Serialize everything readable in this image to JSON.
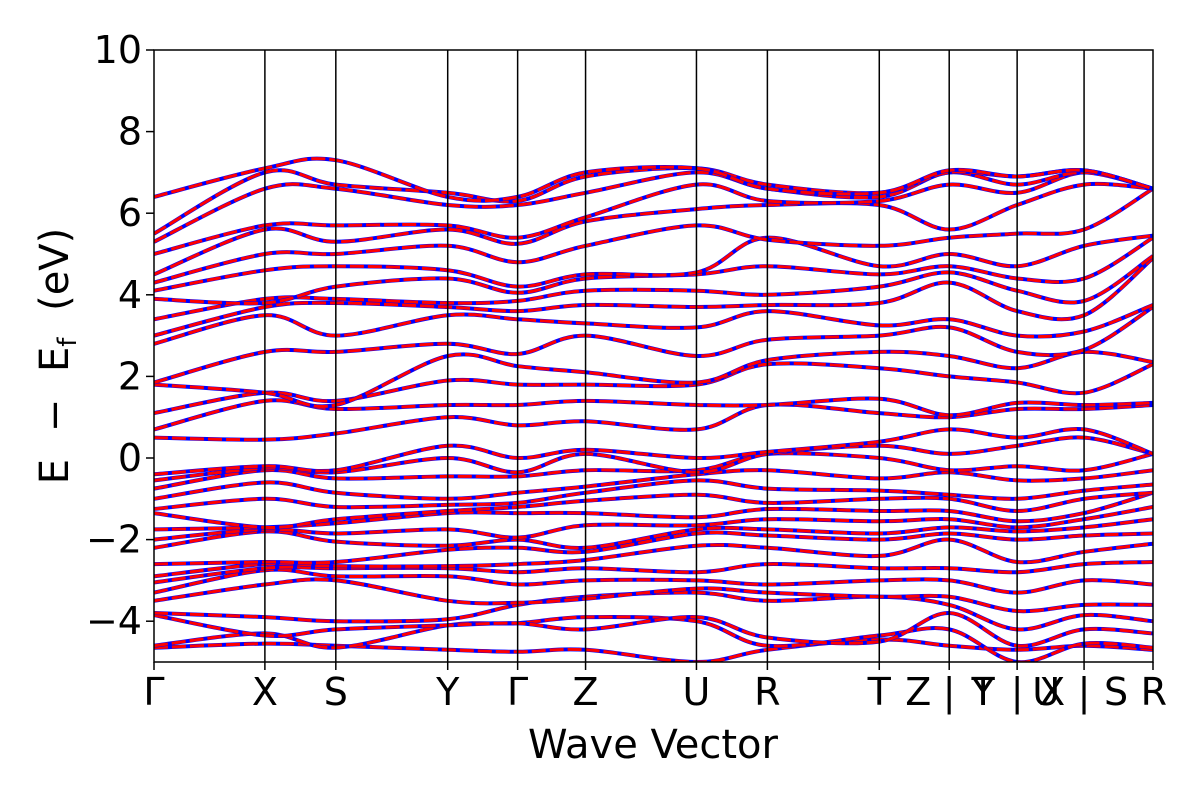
{
  "chart_data": {
    "type": "line",
    "xlabel": "Wave Vector",
    "ylabel_parts": {
      "E": "E",
      "minus": "−",
      "Ef_main": "E",
      "Ef_sub": "f",
      "unit": "(eV)"
    },
    "ylim": [
      -5,
      10
    ],
    "yticks": [
      -4,
      -2,
      0,
      2,
      4,
      6,
      8,
      10
    ],
    "ytick_labels": [
      "−4",
      "−2",
      "0",
      "2",
      "4",
      "6",
      "8",
      "10"
    ],
    "grid": false,
    "legend": "none",
    "kpoint_labels": [
      "Γ",
      "X",
      "S",
      "Y",
      "Γ",
      "Z",
      "U",
      "R",
      "T",
      "Z | Y",
      "T | U",
      "X | S",
      "R"
    ],
    "kpoint_label_glyphs": [
      {
        "text": "Γ",
        "x": 0.0
      },
      {
        "text": "X",
        "x": 1.11
      },
      {
        "text": "S",
        "x": 1.82
      },
      {
        "text": "Y",
        "x": 2.94
      },
      {
        "text": "Γ",
        "x": 3.64
      },
      {
        "text": "Z",
        "x": 4.32
      },
      {
        "text": "U",
        "x": 5.43
      },
      {
        "text": "R",
        "x": 6.14
      },
      {
        "text": "T",
        "x": 7.26
      },
      {
        "text": "Z",
        "x": 7.65
      },
      {
        "text": "|",
        "x": 7.96
      },
      {
        "text": "Y",
        "x": 8.3
      },
      {
        "text": "T",
        "x": 8.3
      },
      {
        "text": "|",
        "x": 8.64
      },
      {
        "text": "U",
        "x": 8.93
      },
      {
        "text": "X",
        "x": 8.99
      },
      {
        "text": "|",
        "x": 9.31
      },
      {
        "text": "S",
        "x": 9.63
      },
      {
        "text": "R",
        "x": 10.0
      }
    ],
    "kpoint_x": [
      0.0,
      1.11,
      1.82,
      2.94,
      3.64,
      4.32,
      5.43,
      6.14,
      7.26,
      7.96,
      8.64,
      9.31,
      10.0
    ],
    "xlim": [
      0,
      10
    ],
    "series": [
      {
        "color": "#0000ff",
        "style": "solid"
      },
      {
        "color": "#ff0000",
        "style": "dashed"
      }
    ],
    "bands": [
      [
        -4.65,
        -4.55,
        -4.6,
        -4.7,
        -4.75,
        -4.7,
        -5.0,
        -4.7,
        -4.45,
        -4.6,
        -4.7,
        -4.6,
        -4.7
      ],
      [
        -4.6,
        -4.3,
        -4.65,
        -4.1,
        -4.05,
        -3.9,
        -4.0,
        -4.6,
        -4.35,
        -4.2,
        -5.0,
        -4.55,
        -4.65
      ],
      [
        -3.85,
        -4.35,
        -4.2,
        -4.1,
        -4.05,
        -4.2,
        -3.9,
        -4.4,
        -4.5,
        -3.8,
        -4.6,
        -4.2,
        -4.3
      ],
      [
        -3.8,
        -3.9,
        -4.0,
        -3.95,
        -3.6,
        -3.4,
        -3.3,
        -3.5,
        -3.4,
        -3.6,
        -4.2,
        -3.85,
        -4.0
      ],
      [
        -3.5,
        -3.1,
        -3.0,
        -3.5,
        -3.55,
        -3.45,
        -3.2,
        -3.3,
        -3.4,
        -3.4,
        -3.75,
        -3.6,
        -3.6
      ],
      [
        -3.3,
        -2.75,
        -2.9,
        -2.9,
        -3.1,
        -3.0,
        -3.0,
        -3.1,
        -3.0,
        -3.0,
        -3.3,
        -3.0,
        -3.1
      ],
      [
        -3.05,
        -2.7,
        -2.7,
        -2.7,
        -2.8,
        -2.7,
        -2.8,
        -2.6,
        -2.7,
        -2.7,
        -2.8,
        -2.6,
        -2.55
      ],
      [
        -2.9,
        -2.6,
        -2.65,
        -2.65,
        -2.6,
        -2.5,
        -2.15,
        -2.2,
        -2.4,
        -2.0,
        -2.55,
        -2.3,
        -2.1
      ],
      [
        -2.6,
        -2.55,
        -2.55,
        -2.25,
        -2.2,
        -2.3,
        -1.85,
        -1.9,
        -2.0,
        -1.85,
        -2.0,
        -1.9,
        -1.85
      ],
      [
        -2.2,
        -1.8,
        -2.05,
        -2.15,
        -2.0,
        -2.2,
        -1.75,
        -1.75,
        -1.85,
        -1.7,
        -1.8,
        -1.7,
        -1.5
      ],
      [
        -2.0,
        -1.75,
        -1.85,
        -1.75,
        -1.95,
        -1.65,
        -1.65,
        -1.5,
        -1.55,
        -1.5,
        -1.7,
        -1.5,
        -1.2
      ],
      [
        -1.75,
        -1.7,
        -1.6,
        -1.35,
        -1.35,
        -1.35,
        -1.45,
        -1.25,
        -1.3,
        -1.3,
        -1.55,
        -1.35,
        -0.85
      ],
      [
        -1.35,
        -1.7,
        -1.5,
        -1.3,
        -1.2,
        -1.05,
        -0.9,
        -1.1,
        -1.0,
        -1.0,
        -1.3,
        -1.0,
        -0.85
      ],
      [
        -1.25,
        -1.0,
        -1.2,
        -1.15,
        -1.1,
        -0.85,
        -0.55,
        -0.75,
        -0.8,
        -0.9,
        -1.0,
        -0.8,
        -0.65
      ],
      [
        -1.0,
        -0.6,
        -0.85,
        -1.0,
        -0.85,
        -0.7,
        -0.4,
        -0.3,
        -0.5,
        -0.35,
        -0.55,
        -0.5,
        -0.3
      ],
      [
        -0.75,
        -0.3,
        -0.5,
        -0.45,
        -0.45,
        -0.3,
        -0.3,
        0.1,
        0.0,
        -0.3,
        -0.2,
        -0.3,
        0.1
      ],
      [
        -0.55,
        -0.25,
        -0.35,
        0.0,
        -0.35,
        0.1,
        -0.35,
        0.1,
        0.3,
        0.1,
        0.3,
        0.5,
        0.1
      ],
      [
        -0.4,
        -0.2,
        -0.3,
        0.3,
        0.0,
        0.2,
        0.0,
        0.15,
        0.4,
        0.7,
        0.5,
        0.7,
        0.1
      ],
      [
        0.5,
        0.45,
        0.6,
        1.0,
        0.8,
        0.9,
        0.7,
        1.3,
        1.1,
        1.0,
        1.2,
        1.2,
        1.3
      ],
      [
        0.7,
        1.4,
        1.2,
        1.3,
        1.3,
        1.4,
        1.3,
        1.3,
        1.45,
        1.05,
        1.35,
        1.3,
        1.35
      ],
      [
        1.1,
        1.6,
        1.4,
        1.9,
        1.8,
        1.8,
        1.8,
        2.3,
        2.2,
        2.0,
        1.85,
        1.6,
        2.3
      ],
      [
        1.8,
        1.6,
        1.3,
        2.5,
        2.25,
        2.1,
        1.85,
        2.4,
        2.6,
        2.5,
        2.2,
        2.6,
        2.35
      ],
      [
        1.85,
        2.6,
        2.6,
        2.8,
        2.55,
        3.0,
        2.5,
        2.9,
        3.0,
        3.2,
        2.6,
        2.65,
        3.7
      ],
      [
        2.8,
        3.5,
        3.0,
        3.5,
        3.4,
        3.3,
        3.2,
        3.6,
        3.25,
        3.4,
        3.0,
        3.1,
        3.75
      ],
      [
        3.0,
        3.7,
        3.8,
        3.7,
        3.6,
        3.75,
        3.7,
        3.75,
        3.8,
        4.3,
        3.6,
        3.5,
        4.9
      ],
      [
        3.4,
        3.9,
        3.9,
        3.8,
        3.85,
        4.1,
        4.1,
        4.0,
        4.2,
        4.55,
        4.1,
        3.85,
        4.95
      ],
      [
        3.9,
        3.8,
        4.2,
        4.4,
        4.05,
        4.4,
        4.5,
        4.7,
        4.5,
        4.7,
        4.4,
        4.4,
        5.4
      ],
      [
        4.1,
        4.6,
        4.7,
        4.6,
        4.2,
        4.5,
        4.55,
        5.4,
        4.7,
        5.0,
        4.7,
        5.2,
        5.45
      ],
      [
        4.3,
        5.0,
        5.0,
        5.2,
        4.8,
        5.2,
        5.7,
        5.35,
        5.2,
        5.4,
        5.5,
        5.6,
        6.6
      ],
      [
        4.5,
        5.6,
        5.3,
        5.6,
        5.25,
        5.8,
        6.1,
        6.2,
        6.2,
        5.6,
        6.2,
        6.7,
        6.6
      ],
      [
        5.0,
        5.7,
        5.7,
        5.7,
        5.4,
        5.9,
        6.7,
        6.3,
        6.3,
        6.7,
        6.5,
        7.0,
        6.6
      ],
      [
        5.3,
        6.6,
        6.6,
        6.2,
        6.2,
        6.5,
        7.0,
        6.6,
        6.4,
        7.0,
        6.7,
        7.0,
        6.6
      ],
      [
        5.5,
        7.0,
        6.7,
        6.5,
        6.3,
        6.9,
        7.1,
        6.7,
        6.5,
        7.0,
        6.9,
        7.05,
        6.6
      ],
      [
        6.4,
        7.1,
        7.3,
        6.4,
        6.4,
        7.0,
        7.1,
        6.6,
        6.5,
        7.05,
        6.9,
        7.05,
        6.6
      ]
    ]
  }
}
